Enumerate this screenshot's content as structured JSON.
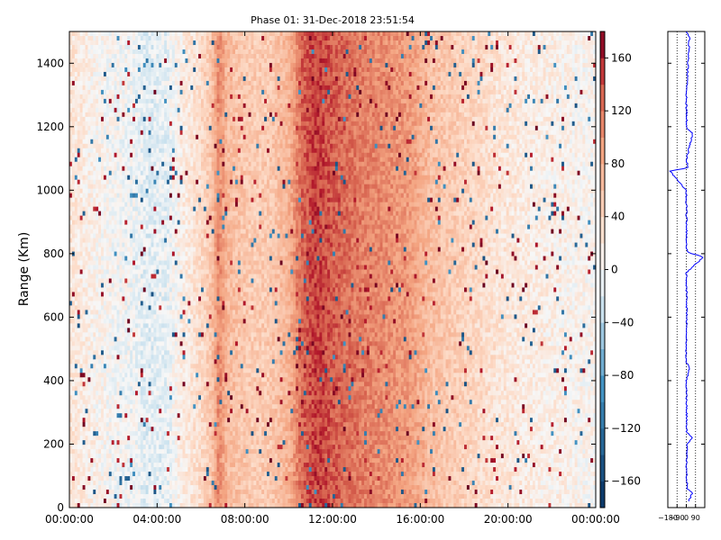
{
  "title": "Phase 01: 31-Dec-2018 23:51:54",
  "colors": {
    "blue_dark": "#053061",
    "blue_light": "#d1e5f0",
    "white": "#f7f7f7",
    "red_light": "#fddbc7",
    "red_dark": "#67001f",
    "side_line": "#0000ff"
  },
  "chart_data": [
    {
      "type": "heatmap",
      "title": "Phase 01: 31-Dec-2018 23:51:54",
      "xlabel": "",
      "ylabel": "Range (Km)",
      "x_tick_labels": [
        "00:00:00",
        "04:00:00",
        "08:00:00",
        "12:00:00",
        "16:00:00",
        "20:00:00",
        "00:00:00"
      ],
      "x_range_hours": [
        0,
        24
      ],
      "y_ticks": [
        0,
        200,
        400,
        600,
        800,
        1000,
        1200,
        1400
      ],
      "ylim": [
        0,
        1500
      ],
      "colormap": "RdBu_r",
      "clim": [
        -180,
        180
      ],
      "colorbar_ticks": [
        -160,
        -120,
        -80,
        -40,
        0,
        40,
        80,
        120,
        160
      ],
      "phase_profile_by_time": [
        {
          "hour": 0.0,
          "phase": 25
        },
        {
          "hour": 1.0,
          "phase": 10
        },
        {
          "hour": 2.0,
          "phase": 0
        },
        {
          "hour": 3.0,
          "phase": -5
        },
        {
          "hour": 3.5,
          "phase": -15
        },
        {
          "hour": 4.5,
          "phase": -10
        },
        {
          "hour": 5.0,
          "phase": 10
        },
        {
          "hour": 6.0,
          "phase": 35
        },
        {
          "hour": 6.5,
          "phase": 60
        },
        {
          "hour": 6.8,
          "phase": 110
        },
        {
          "hour": 7.2,
          "phase": 70
        },
        {
          "hour": 7.7,
          "phase": 60
        },
        {
          "hour": 8.5,
          "phase": 50
        },
        {
          "hour": 9.2,
          "phase": 55
        },
        {
          "hour": 10.0,
          "phase": 75
        },
        {
          "hour": 10.6,
          "phase": 130
        },
        {
          "hour": 11.3,
          "phase": 150
        },
        {
          "hour": 12.0,
          "phase": 135
        },
        {
          "hour": 13.0,
          "phase": 120
        },
        {
          "hour": 14.0,
          "phase": 110
        },
        {
          "hour": 15.5,
          "phase": 95
        },
        {
          "hour": 16.5,
          "phase": 65
        },
        {
          "hour": 18.0,
          "phase": 45
        },
        {
          "hour": 19.5,
          "phase": 25
        },
        {
          "hour": 21.0,
          "phase": 15
        },
        {
          "hour": 22.5,
          "phase": 10
        },
        {
          "hour": 24.0,
          "phase": 5
        }
      ]
    },
    {
      "type": "line",
      "title": "",
      "x_tick_labels": [
        "-180",
        "-90",
        "0",
        "90"
      ],
      "x_ticks": [
        -180,
        -90,
        0,
        90
      ],
      "xlim": [
        -180,
        180
      ],
      "ylim": [
        0,
        1500
      ],
      "grid": "vertical dotted",
      "series": [
        {
          "values": [
            {
              "range": 20,
              "phase": 20
            },
            {
              "range": 45,
              "phase": 60
            },
            {
              "range": 60,
              "phase": 10
            },
            {
              "range": 120,
              "phase": 0
            },
            {
              "range": 200,
              "phase": 10
            },
            {
              "range": 220,
              "phase": 55
            },
            {
              "range": 240,
              "phase": 5
            },
            {
              "range": 400,
              "phase": 0
            },
            {
              "range": 440,
              "phase": 30
            },
            {
              "range": 460,
              "phase": -5
            },
            {
              "range": 600,
              "phase": 5
            },
            {
              "range": 740,
              "phase": 0
            },
            {
              "range": 790,
              "phase": 170
            },
            {
              "range": 805,
              "phase": 5
            },
            {
              "range": 1000,
              "phase": 0
            },
            {
              "range": 1060,
              "phase": -160
            },
            {
              "range": 1070,
              "phase": 10
            },
            {
              "range": 1100,
              "phase": 5
            },
            {
              "range": 1180,
              "phase": 60
            },
            {
              "range": 1195,
              "phase": 5
            },
            {
              "range": 1300,
              "phase": 0
            },
            {
              "range": 1480,
              "phase": 30
            },
            {
              "range": 1500,
              "phase": 5
            }
          ]
        }
      ]
    }
  ]
}
